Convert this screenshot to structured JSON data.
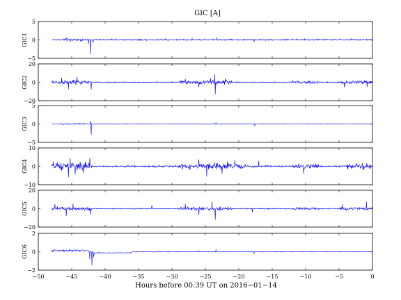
{
  "chart_data": {
    "type": "line",
    "title": "GIC [A]",
    "xlabel": "Hours before  00:39 UT on 2016−01−14",
    "xlim": [
      -50,
      0
    ],
    "xticks": [
      -50,
      -45,
      -40,
      -35,
      -30,
      -25,
      -20,
      -15,
      -10,
      -5,
      0
    ],
    "xtick_labels": [
      "−50",
      "−45",
      "−40",
      "−35",
      "−30",
      "−25",
      "−20",
      "−15",
      "−10",
      "−5",
      "0"
    ],
    "data_x_range": [
      -48,
      0
    ],
    "grid": false,
    "line_color": "#0000ff",
    "panels": [
      {
        "ylabel": "GIC1",
        "ylim": [
          -5,
          5
        ],
        "yticks": [
          -5,
          0,
          5
        ],
        "ytick_labels": [
          "−5",
          "0",
          "5"
        ],
        "noise": 0.25,
        "base": 0.05,
        "events": [
          {
            "t": -42.2,
            "v": -3.9
          },
          {
            "t": -42.5,
            "v": -1.1
          },
          {
            "t": -41.8,
            "v": -0.8
          },
          {
            "t": -23.3,
            "v": 0.6
          },
          {
            "t": -46.0,
            "v": 0.4
          },
          {
            "t": -45.2,
            "v": -0.5
          },
          {
            "t": -17.7,
            "v": -0.5
          },
          {
            "t": -10.2,
            "v": 0.4
          },
          {
            "t": -27.0,
            "v": 0.45
          },
          {
            "t": -31.0,
            "v": 0.35
          },
          {
            "t": -3.2,
            "v": 0.4
          },
          {
            "t": -38.5,
            "v": 0.35
          }
        ],
        "bursts": [
          {
            "a": -47,
            "b": -43,
            "amp": 0.25
          }
        ]
      },
      {
        "ylabel": "GIC2",
        "ylim": [
          -20,
          20
        ],
        "yticks": [
          -20,
          0,
          20
        ],
        "ytick_labels": [
          "−20",
          "0",
          "20"
        ],
        "noise": 0.8,
        "base": 0.0,
        "events": [
          {
            "t": -23.6,
            "v": 9.0
          },
          {
            "t": -23.5,
            "v": -13.0
          },
          {
            "t": -42.1,
            "v": -8.0
          },
          {
            "t": -45.5,
            "v": -7.5
          },
          {
            "t": -46.5,
            "v": 5.0
          },
          {
            "t": -44.2,
            "v": 6.0
          },
          {
            "t": -26.0,
            "v": -5.5
          },
          {
            "t": -24.2,
            "v": 4.5
          },
          {
            "t": -0.8,
            "v": -5.0
          },
          {
            "t": -4.2,
            "v": -5.5
          },
          {
            "t": -22.0,
            "v": 4.0
          },
          {
            "t": -28.0,
            "v": 3.5
          }
        ],
        "bursts": [
          {
            "a": -48,
            "b": -42,
            "amp": 2.5
          },
          {
            "a": -29,
            "b": -21,
            "amp": 2.2
          },
          {
            "a": -12,
            "b": -8,
            "amp": 1.5
          },
          {
            "a": -5,
            "b": 0,
            "amp": 1.8
          }
        ]
      },
      {
        "ylabel": "GIC3",
        "ylim": [
          -5,
          5
        ],
        "yticks": [
          -5,
          0,
          5
        ],
        "ytick_labels": [
          "−5",
          "0",
          "5"
        ],
        "noise": 0.12,
        "base": 0.0,
        "events": [
          {
            "t": -42.1,
            "v": -3.0
          },
          {
            "t": -42.2,
            "v": 0.8
          },
          {
            "t": -17.6,
            "v": -0.6
          },
          {
            "t": -23.4,
            "v": 0.4
          }
        ],
        "bursts": [
          {
            "a": -47,
            "b": -43,
            "amp": 0.15
          }
        ]
      },
      {
        "ylabel": "GIC4",
        "ylim": [
          -10,
          10
        ],
        "yticks": [
          -10,
          0,
          10
        ],
        "ytick_labels": [
          "−10",
          "0",
          "10"
        ],
        "noise": 0.6,
        "base": 0.0,
        "events": [
          {
            "t": -45.5,
            "v": -6.0
          },
          {
            "t": -45.2,
            "v": 4.5
          },
          {
            "t": -44.5,
            "v": -4.5
          },
          {
            "t": -42.3,
            "v": 4.5
          },
          {
            "t": -43.2,
            "v": -4.0
          },
          {
            "t": -24.8,
            "v": -5.5
          },
          {
            "t": -26.0,
            "v": 3.8
          },
          {
            "t": -22.5,
            "v": -4.0
          },
          {
            "t": -20.6,
            "v": 3.5
          },
          {
            "t": -10.3,
            "v": -4.0
          },
          {
            "t": -17.0,
            "v": 3.0
          }
        ],
        "bursts": [
          {
            "a": -48,
            "b": -42,
            "amp": 2.4
          },
          {
            "a": -29,
            "b": -19,
            "amp": 1.8
          },
          {
            "a": -12,
            "b": -8,
            "amp": 1.2
          },
          {
            "a": -4,
            "b": 0,
            "amp": 1.5
          }
        ]
      },
      {
        "ylabel": "GIC5",
        "ylim": [
          -20,
          20
        ],
        "yticks": [
          -20,
          0,
          20
        ],
        "ytick_labels": [
          "−20",
          "0",
          "20"
        ],
        "noise": 0.7,
        "base": 0.0,
        "events": [
          {
            "t": -45.8,
            "v": -8.0
          },
          {
            "t": -44.8,
            "v": 5.5
          },
          {
            "t": -42.2,
            "v": -6.5
          },
          {
            "t": -23.5,
            "v": -12.0
          },
          {
            "t": -24.0,
            "v": 8.0
          },
          {
            "t": -26.0,
            "v": -7.0
          },
          {
            "t": -28.0,
            "v": 5.0
          },
          {
            "t": -33.0,
            "v": 4.0
          },
          {
            "t": -0.9,
            "v": 7.5
          },
          {
            "t": -4.5,
            "v": 5.0
          },
          {
            "t": -18.0,
            "v": -4.0
          },
          {
            "t": -47.5,
            "v": 5.0
          }
        ],
        "bursts": [
          {
            "a": -48,
            "b": -42,
            "amp": 2.2
          },
          {
            "a": -29,
            "b": -21,
            "amp": 2.0
          },
          {
            "a": -12,
            "b": -8,
            "amp": 1.2
          },
          {
            "a": -5,
            "b": 0,
            "amp": 1.6
          }
        ]
      },
      {
        "ylabel": "GIC6",
        "ylim": [
          -2,
          2
        ],
        "yticks": [
          -2,
          0,
          2
        ],
        "ytick_labels": [
          "−2",
          "0",
          "2"
        ],
        "noise": 0.05,
        "base": 0.0,
        "events": [
          {
            "t": -42.0,
            "v": -1.5
          },
          {
            "t": -42.3,
            "v": -0.8
          },
          {
            "t": -41.7,
            "v": -0.6
          },
          {
            "t": -23.4,
            "v": 0.25
          },
          {
            "t": -17.7,
            "v": -0.2
          },
          {
            "t": -26.0,
            "v": 0.15
          }
        ],
        "bursts": [
          {
            "a": -48,
            "b": -43,
            "amp": 0.1
          }
        ],
        "drift": [
          {
            "a": -48,
            "b": -42.5,
            "v": 0.12
          },
          {
            "a": -41.8,
            "b": -36,
            "v": -0.12
          }
        ]
      }
    ]
  }
}
